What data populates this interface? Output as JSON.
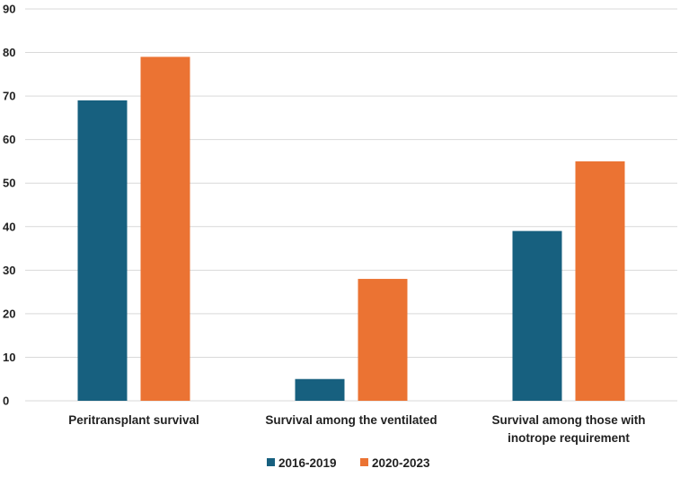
{
  "chart_data": {
    "type": "bar",
    "title": "",
    "xlabel": "",
    "ylabel": "",
    "ylim": [
      0,
      90
    ],
    "yticks": [
      0,
      10,
      20,
      30,
      40,
      50,
      60,
      70,
      80,
      90
    ],
    "grid": true,
    "legend_position": "bottom",
    "categories": [
      [
        "Peritransplant survival"
      ],
      [
        "Survival among the ventilated"
      ],
      [
        "Survival among those with",
        "inotrope requirement"
      ]
    ],
    "series": [
      {
        "name": "2016-2019",
        "color": "#17607f",
        "values": [
          69,
          5,
          39
        ]
      },
      {
        "name": "2020-2023",
        "color": "#eb7333",
        "values": [
          79,
          28,
          55
        ]
      }
    ]
  }
}
